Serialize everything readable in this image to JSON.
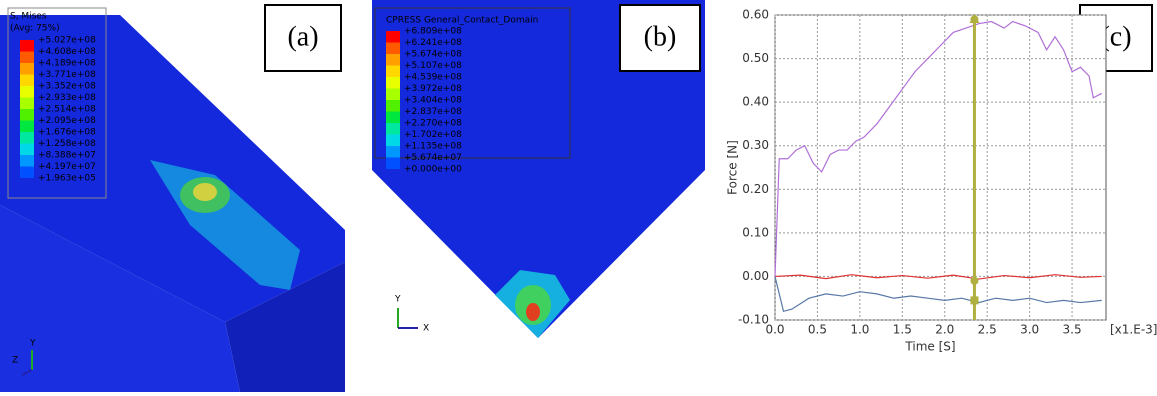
{
  "panels": {
    "a": {
      "label": "(a)",
      "legend_title": "S, Mises",
      "legend_subtitle": "(Avg: 75%)",
      "legend_values": [
        "+5.027e+08",
        "+4.608e+08",
        "+4.189e+08",
        "+3.771e+08",
        "+3.352e+08",
        "+2.933e+08",
        "+2.514e+08",
        "+2.095e+08",
        "+1.676e+08",
        "+1.258e+08",
        "+8.388e+07",
        "+4.197e+07",
        "+1.963e+05"
      ],
      "axes": [
        "Y",
        "Z"
      ]
    },
    "b": {
      "label": "(b)",
      "legend_title": "CPRESS General_Contact_Domain",
      "legend_values": [
        "+6.809e+08",
        "+6.241e+08",
        "+5.674e+08",
        "+5.107e+08",
        "+4.539e+08",
        "+3.972e+08",
        "+3.404e+08",
        "+2.837e+08",
        "+2.270e+08",
        "+1.702e+08",
        "+1.135e+08",
        "+5.674e+07",
        "+0.000e+00"
      ],
      "axes": [
        "Y",
        "X"
      ]
    },
    "c": {
      "label": "(c)"
    }
  },
  "chart_data": {
    "type": "line",
    "x_label": "Time [S]",
    "y_label": "Force [N]",
    "x_unit_note": "[x1.E-3]",
    "xlim": [
      0,
      3.9
    ],
    "ylim": [
      -0.1,
      0.6
    ],
    "grid": true,
    "xticks": [
      {
        "value": 0,
        "label": "0.0"
      },
      {
        "value": 0.5,
        "label": "0.5"
      },
      {
        "value": 1,
        "label": "1.0"
      },
      {
        "value": 1.5,
        "label": "1.5"
      },
      {
        "value": 2,
        "label": "2.0"
      },
      {
        "value": 2.5,
        "label": "2.5"
      },
      {
        "value": 3,
        "label": "3.0"
      },
      {
        "value": 3.5,
        "label": "3.5"
      }
    ],
    "yticks": [
      {
        "value": -0.1,
        "label": "-0.10"
      },
      {
        "value": 0,
        "label": "0.00"
      },
      {
        "value": 0.1,
        "label": "0.10"
      },
      {
        "value": 0.2,
        "label": "0.20"
      },
      {
        "value": 0.3,
        "label": "0.30"
      },
      {
        "value": 0.4,
        "label": "0.40"
      },
      {
        "value": 0.5,
        "label": "0.50"
      },
      {
        "value": 0.6,
        "label": "0.60"
      }
    ],
    "series": [
      {
        "color": "#b070d8",
        "x": [
          0,
          0.05,
          0.15,
          0.25,
          0.35,
          0.45,
          0.55,
          0.65,
          0.75,
          0.85,
          0.95,
          1.05,
          1.2,
          1.35,
          1.5,
          1.65,
          1.8,
          1.95,
          2.1,
          2.25,
          2.4,
          2.55,
          2.7,
          2.8,
          2.95,
          3.1,
          3.2,
          3.3,
          3.4,
          3.5,
          3.6,
          3.7,
          3.75,
          3.85
        ],
        "values": [
          0,
          0.27,
          0.27,
          0.29,
          0.3,
          0.26,
          0.24,
          0.28,
          0.29,
          0.29,
          0.31,
          0.32,
          0.35,
          0.39,
          0.43,
          0.47,
          0.5,
          0.53,
          0.56,
          0.57,
          0.58,
          0.585,
          0.57,
          0.585,
          0.575,
          0.56,
          0.52,
          0.55,
          0.52,
          0.47,
          0.48,
          0.46,
          0.41,
          0.42
        ]
      },
      {
        "color": "#e03030",
        "x": [
          0,
          0.3,
          0.6,
          0.9,
          1.2,
          1.5,
          1.8,
          2.1,
          2.4,
          2.7,
          3.0,
          3.3,
          3.6,
          3.85
        ],
        "values": [
          0,
          0.003,
          -0.005,
          0.004,
          -0.003,
          0.002,
          -0.004,
          0.003,
          -0.006,
          0.002,
          -0.003,
          0.004,
          -0.002,
          0
        ]
      },
      {
        "color": "#5878a8",
        "x": [
          0,
          0.1,
          0.2,
          0.4,
          0.6,
          0.8,
          1.0,
          1.2,
          1.4,
          1.6,
          1.8,
          2.0,
          2.2,
          2.4,
          2.6,
          2.8,
          3.0,
          3.2,
          3.4,
          3.6,
          3.85
        ],
        "values": [
          0,
          -0.08,
          -0.075,
          -0.05,
          -0.04,
          -0.045,
          -0.035,
          -0.04,
          -0.05,
          -0.045,
          -0.05,
          -0.055,
          -0.05,
          -0.06,
          -0.05,
          -0.055,
          -0.05,
          -0.06,
          -0.055,
          -0.06,
          -0.055
        ]
      }
    ],
    "cursor": {
      "x": 2.35,
      "color": "#b0b040",
      "values": [
        0.59,
        -0.01,
        -0.055
      ]
    }
  }
}
